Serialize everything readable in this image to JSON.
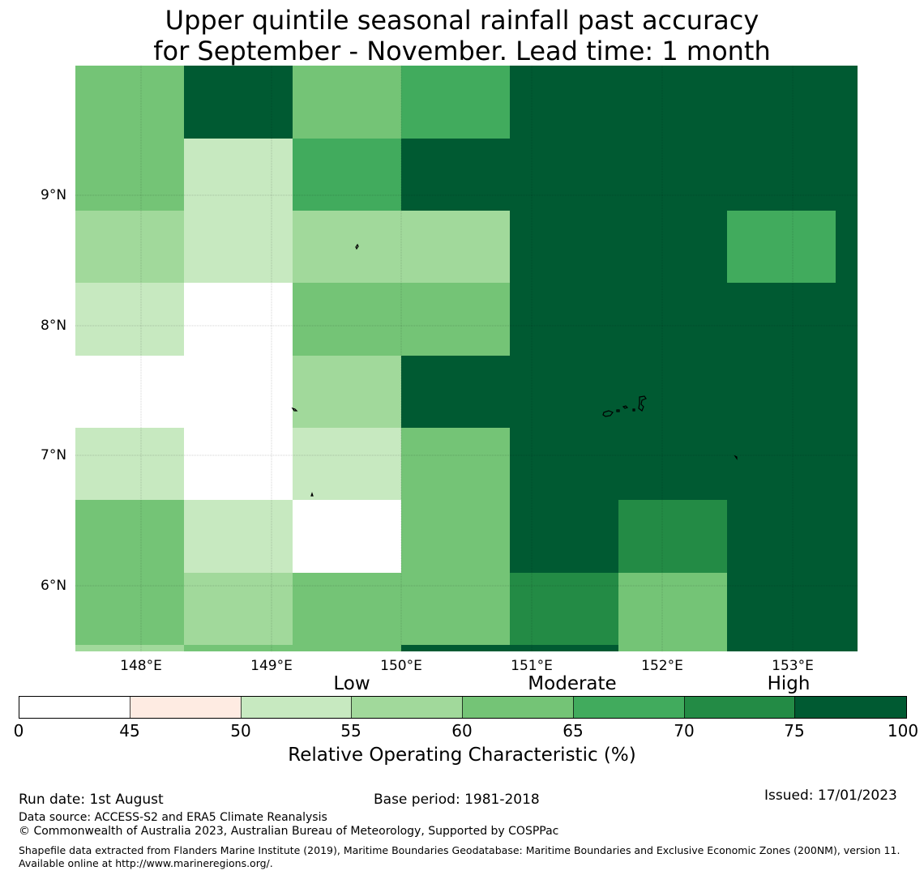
{
  "title_line1": "Upper quintile seasonal rainfall past accuracy",
  "title_line2": "for September - November. Lead time: 1 month",
  "map": {
    "lon_labels": [
      "148°E",
      "149°E",
      "150°E",
      "151°E",
      "152°E",
      "153°E"
    ],
    "lon_values": [
      148,
      149,
      150,
      151,
      152,
      153
    ],
    "lat_labels": [
      "9°N",
      "8°N",
      "7°N",
      "6°N"
    ],
    "lat_values": [
      9,
      8,
      7,
      6
    ],
    "lon_range": [
      147.5,
      153.5
    ],
    "lat_range": [
      5.5,
      10.0
    ],
    "grid_note": "cells 0.83° x 0.56°, values = ROC class lower bound; null = below 45",
    "cells": [
      [
        60,
        75,
        60,
        65,
        75,
        80,
        80,
        80
      ],
      [
        60,
        50,
        65,
        75,
        80,
        80,
        80,
        80
      ],
      [
        55,
        50,
        55,
        55,
        75,
        75,
        65,
        80
      ],
      [
        50,
        0,
        60,
        60,
        80,
        80,
        75,
        80
      ],
      [
        0,
        0,
        55,
        75,
        75,
        75,
        75,
        80
      ],
      [
        50,
        0,
        50,
        60,
        75,
        80,
        75,
        75
      ],
      [
        60,
        50,
        0,
        60,
        75,
        70,
        80,
        80
      ],
      [
        60,
        55,
        60,
        60,
        70,
        60,
        75,
        80
      ],
      [
        55,
        60,
        60,
        75,
        75,
        60,
        80,
        80
      ]
    ]
  },
  "category_labels": {
    "low": "Low",
    "moderate": "Moderate",
    "high": "High"
  },
  "colorbar": {
    "ticks": [
      "0",
      "45",
      "50",
      "55",
      "60",
      "65",
      "70",
      "75",
      "100"
    ],
    "colors": [
      "#ffffff",
      "#feebe2",
      "#c7e9c0",
      "#a1d99b",
      "#74c476",
      "#41ab5d",
      "#238b45",
      "#005a32"
    ],
    "title": "Relative Operating Characteristic (%)"
  },
  "footer": {
    "run_date": "Run date: 1st August",
    "base_period": "Base period: 1981-2018",
    "issued": "Issued: 17/01/2023",
    "data_source": "Data source: ACCESS-S2 and ERA5 Climate Reanalysis",
    "copyright": "© Commonwealth of Australia 2023, Australian Bureau of Meteorology, Supported by COSPPac",
    "shapefile": "Shapefile data extracted from Flanders Marine Institute (2019), Maritime Boundaries Geodatabase: Maritime Boundaries and Exclusive Economic Zones (200NM), version 11. Available online at http://www.marineregions.org/."
  }
}
